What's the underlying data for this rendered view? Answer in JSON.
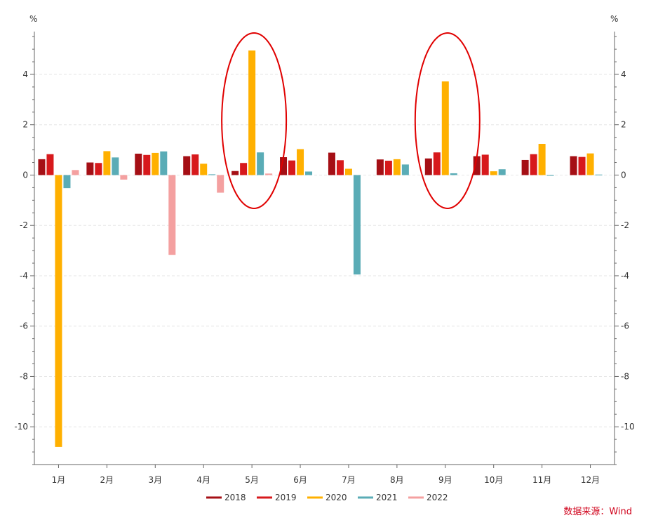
{
  "chart_data": {
    "type": "bar",
    "unit_left": "%",
    "unit_right": "%",
    "categories": [
      "1月",
      "2月",
      "3月",
      "4月",
      "5月",
      "6月",
      "7月",
      "8月",
      "9月",
      "10月",
      "11月",
      "12月"
    ],
    "series": [
      {
        "name": "2018",
        "color": "#a50f15",
        "values": [
          0.63,
          0.5,
          0.85,
          0.75,
          0.16,
          0.71,
          0.89,
          0.62,
          0.66,
          0.75,
          0.6,
          0.75
        ]
      },
      {
        "name": "2019",
        "color": "#d7191c",
        "values": [
          0.83,
          0.48,
          0.8,
          0.82,
          0.48,
          0.58,
          0.59,
          0.57,
          0.9,
          0.81,
          0.83,
          0.72
        ]
      },
      {
        "name": "2020",
        "color": "#ffb000",
        "values": [
          -10.8,
          0.95,
          0.88,
          0.45,
          4.95,
          1.03,
          0.25,
          0.63,
          3.72,
          0.15,
          1.24,
          0.86
        ]
      },
      {
        "name": "2021",
        "color": "#5aacb6",
        "values": [
          -0.52,
          0.7,
          0.94,
          0.03,
          0.9,
          0.14,
          -3.95,
          0.42,
          0.07,
          0.23,
          -0.03,
          0.02
        ]
      },
      {
        "name": "2022",
        "color": "#f4a0a0",
        "values": [
          0.2,
          -0.18,
          -3.17,
          -0.7,
          0.06,
          null,
          null,
          null,
          null,
          null,
          null,
          null
        ]
      }
    ],
    "ylim": [
      -11.5,
      5.7
    ],
    "yticks": [
      4,
      2,
      0,
      -2,
      -4,
      -6,
      -8,
      -10
    ],
    "grid": true,
    "legend_position": "bottom",
    "highlighted_categories": [
      "5月",
      "9月"
    ],
    "highlight_color": "#e00000"
  },
  "source": "数据来源：Wind"
}
